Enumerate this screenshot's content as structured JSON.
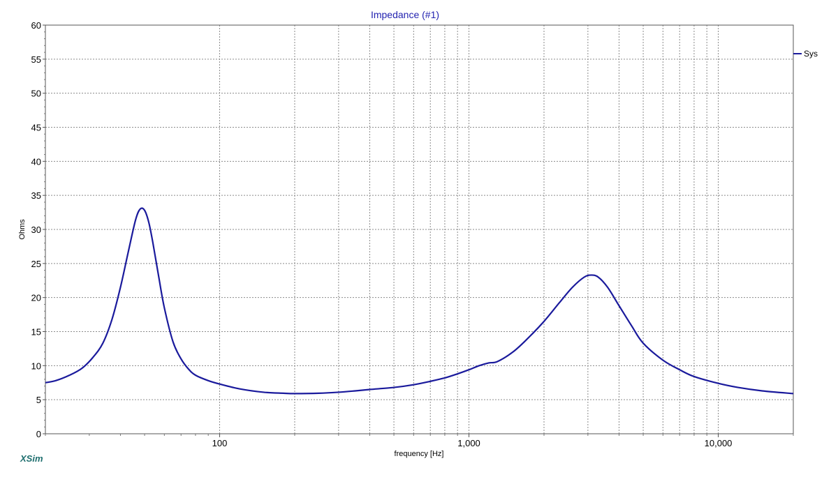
{
  "chart_data": {
    "type": "line",
    "title": "Impedance (#1)",
    "xlabel": "frequency [Hz]",
    "ylabel": "Ohms",
    "x_scale": "log",
    "xlim": [
      20,
      20000
    ],
    "ylim": [
      0,
      60
    ],
    "y_ticks": [
      0,
      5,
      10,
      15,
      20,
      25,
      30,
      35,
      40,
      45,
      50,
      55,
      60
    ],
    "x_tick_labels": [
      {
        "value": 100,
        "label": "100"
      },
      {
        "value": 1000,
        "label": "1,000"
      },
      {
        "value": 10000,
        "label": "10,000"
      }
    ],
    "x_gridlines": [
      100,
      200,
      300,
      400,
      500,
      600,
      700,
      800,
      900,
      1000,
      2000,
      3000,
      4000,
      5000,
      6000,
      7000,
      8000,
      9000,
      10000
    ],
    "grid": true,
    "legend_position": "right",
    "series": [
      {
        "name": "Sys",
        "color": "#1a1a9c",
        "x": [
          20,
          22,
          25,
          28,
          31,
          34,
          37,
          40,
          43,
          46,
          48,
          50,
          52,
          54,
          57,
          60,
          65,
          70,
          75,
          80,
          90,
          100,
          120,
          150,
          180,
          200,
          250,
          300,
          350,
          400,
          500,
          600,
          700,
          800,
          900,
          1000,
          1100,
          1200,
          1300,
          1500,
          1700,
          2000,
          2300,
          2600,
          2900,
          3100,
          3300,
          3600,
          4000,
          4500,
          5000,
          6000,
          7000,
          8000,
          10000,
          12000,
          15000,
          20000
        ],
        "y": [
          7.5,
          7.8,
          8.6,
          9.6,
          11.2,
          13.3,
          16.8,
          21.5,
          26.7,
          31.4,
          33.0,
          32.8,
          31.0,
          28.0,
          23.0,
          18.5,
          13.5,
          11.0,
          9.5,
          8.6,
          7.8,
          7.3,
          6.6,
          6.1,
          5.95,
          5.9,
          5.95,
          6.1,
          6.3,
          6.5,
          6.8,
          7.2,
          7.7,
          8.2,
          8.8,
          9.4,
          10.0,
          10.4,
          10.6,
          12.0,
          13.8,
          16.5,
          19.2,
          21.5,
          23.0,
          23.3,
          23.0,
          21.5,
          18.8,
          15.8,
          13.3,
          10.8,
          9.4,
          8.4,
          7.4,
          6.8,
          6.3,
          5.9
        ]
      }
    ],
    "branding": "XSim"
  }
}
